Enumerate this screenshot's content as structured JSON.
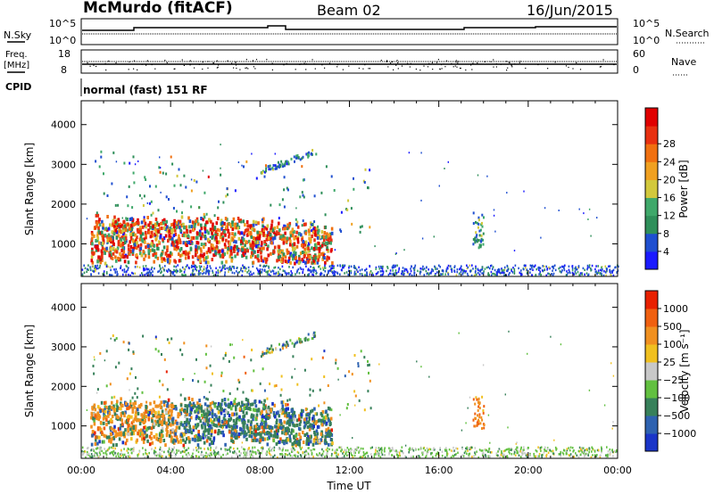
{
  "header": {
    "station": "McMurdo (fitACF)",
    "beam": "Beam 02",
    "date": "16/Jun/2015"
  },
  "top_panels": {
    "nsky_label": "N.Sky",
    "nsearch_label": "N.Search",
    "nsky_ticks": [
      "10^5",
      "10^0"
    ],
    "nsearch_ticks": [
      "10^5",
      "10^0"
    ],
    "freq_label": "Freq.",
    "freq_unit": "[MHz]",
    "freq_ticks": [
      "18",
      "8"
    ],
    "nave_label": "Nave",
    "nave_ticks": [
      "60",
      "0"
    ],
    "cpid_label": "CPID",
    "cpid_text": "normal (fast) 151 RF"
  },
  "chart_data": [
    {
      "type": "heatmap",
      "title": "",
      "ylabel": "Slant Range [km]",
      "xlabel": "",
      "x_range_hours": [
        0,
        24
      ],
      "ylim": [
        180,
        4600
      ],
      "yticks": [
        "1000",
        "2000",
        "3000",
        "4000"
      ],
      "colorbar": {
        "label": "Power [dB]",
        "ticks": [
          "4",
          "8",
          "12",
          "16",
          "20",
          "24",
          "28"
        ],
        "colors": [
          "#1a1aff",
          "#1f4fd0",
          "#2f8f5a",
          "#3fa86a",
          "#d2c83c",
          "#f0a020",
          "#f07010",
          "#e83010",
          "#e00000"
        ]
      }
    },
    {
      "type": "heatmap",
      "title": "",
      "ylabel": "Slant Range [km]",
      "xlabel": "Time UT",
      "x_range_hours": [
        0,
        24
      ],
      "xticks": [
        "00:00",
        "04:00",
        "08:00",
        "12:00",
        "16:00",
        "20:00",
        "00:00"
      ],
      "ylim": [
        180,
        4600
      ],
      "yticks": [
        "1000",
        "2000",
        "3000",
        "4000"
      ],
      "colorbar": {
        "label": "Velocity [m s⁻¹]",
        "ticks": [
          "1000",
          "500",
          "100",
          "25",
          "−25",
          "−100",
          "−500",
          "−1000"
        ],
        "colors": [
          "#1a35c8",
          "#2e62b0",
          "#37805a",
          "#62c040",
          "#c8c8c8",
          "#f0c020",
          "#f09020",
          "#f06010",
          "#e82000"
        ]
      }
    }
  ]
}
